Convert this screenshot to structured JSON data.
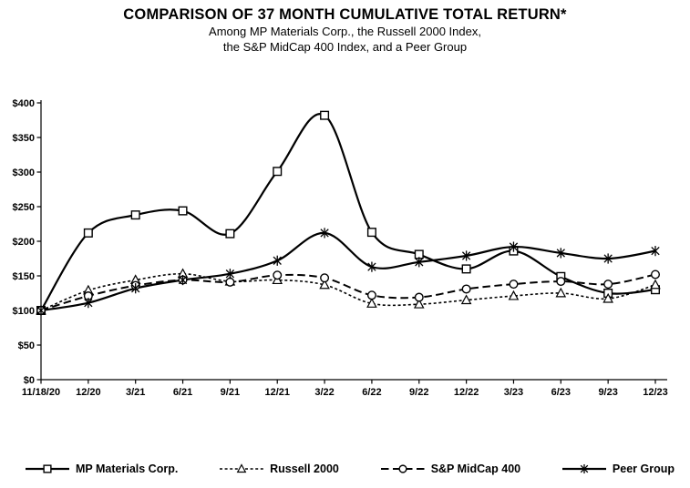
{
  "header": {
    "title": "COMPARISON OF 37 MONTH CUMULATIVE TOTAL RETURN*",
    "subtitle_line1": "Among MP Materials Corp., the Russell 2000 Index,",
    "subtitle_line2": "the S&P MidCap 400 Index, and a Peer Group"
  },
  "chart_data": {
    "type": "line",
    "smooth": true,
    "title": "COMPARISON OF 37 MONTH CUMULATIVE TOTAL RETURN*",
    "xlabel": "",
    "ylabel": "",
    "ylim": [
      0,
      400
    ],
    "grid": false,
    "legend_position": "bottom",
    "background_color": "#ffffff",
    "line_color": "#000000",
    "categories": [
      "11/18/20",
      "12/20",
      "3/21",
      "6/21",
      "9/21",
      "12/21",
      "3/22",
      "6/22",
      "9/22",
      "12/22",
      "3/23",
      "6/23",
      "9/23",
      "12/23"
    ],
    "y_ticks": [
      0,
      50,
      100,
      150,
      200,
      250,
      300,
      350,
      400
    ],
    "y_tick_labels": [
      "$0",
      "$50",
      "$100",
      "$150",
      "$200",
      "$250",
      "$300",
      "$350",
      "$400"
    ],
    "series": [
      {
        "name": "MP Materials Corp.",
        "marker": "square",
        "dash": "solid",
        "values": [
          100,
          212,
          238,
          244,
          211,
          301,
          382,
          213,
          181,
          160,
          186,
          149,
          125,
          130
        ]
      },
      {
        "name": "Russell 2000",
        "marker": "triangle",
        "dash": "dotted",
        "values": [
          100,
          129,
          144,
          153,
          142,
          144,
          137,
          110,
          109,
          115,
          121,
          125,
          117,
          137
        ]
      },
      {
        "name": "S&P MidCap 400",
        "marker": "circle",
        "dash": "dashed",
        "values": [
          100,
          121,
          136,
          144,
          141,
          151,
          147,
          122,
          119,
          131,
          138,
          142,
          138,
          152
        ]
      },
      {
        "name": "Peer Group",
        "marker": "asterisk",
        "dash": "solid",
        "values": [
          100,
          111,
          132,
          144,
          153,
          172,
          212,
          163,
          170,
          179,
          192,
          183,
          175,
          186
        ]
      }
    ]
  }
}
